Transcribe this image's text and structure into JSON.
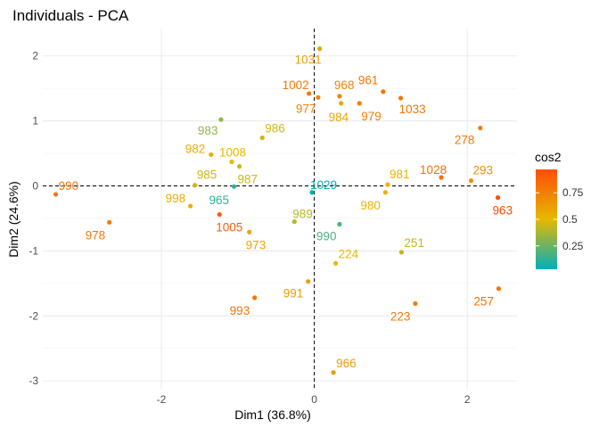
{
  "chart_data": {
    "type": "scatter",
    "title": "Individuals - PCA",
    "xlabel": "Dim1 (36.8%)",
    "ylabel": "Dim2 (24.6%)",
    "xlim": [
      -3.55,
      2.65
    ],
    "ylim": [
      -3.12,
      2.42
    ],
    "x_ticks": [
      -2,
      0,
      2
    ],
    "y_ticks": [
      -3,
      -2,
      -1,
      0,
      1,
      2
    ],
    "grid": true,
    "reference_lines": {
      "x": 0,
      "y": 0,
      "style": "dashed"
    },
    "color_by": "cos2",
    "legend": {
      "title": "cos2",
      "position": "right",
      "ticks": [
        0.25,
        0.5,
        0.75
      ],
      "range": [
        0.03,
        0.97
      ],
      "gradient": [
        "#00AFBB",
        "#E7B800",
        "#FC4E07"
      ]
    },
    "points": [
      {
        "label": "1031",
        "x": 0.07,
        "y": 2.11,
        "cos2": 0.6,
        "dx": -28,
        "dy": 17
      },
      {
        "label": "1002",
        "x": -0.07,
        "y": 1.42,
        "cos2": 0.78,
        "dx": -30,
        "dy": -5
      },
      {
        "label": "968",
        "x": 0.33,
        "y": 1.38,
        "cos2": 0.74,
        "dx": -6,
        "dy": -8
      },
      {
        "label": "961",
        "x": 0.9,
        "y": 1.45,
        "cos2": 0.8,
        "dx": -28,
        "dy": -8
      },
      {
        "label": "1033",
        "x": 1.13,
        "y": 1.35,
        "cos2": 0.8,
        "dx": -2,
        "dy": 17
      },
      {
        "label": "977",
        "x": 0.05,
        "y": 1.36,
        "cos2": 0.74,
        "dx": -25,
        "dy": 17
      },
      {
        "label": "984",
        "x": 0.35,
        "y": 1.27,
        "cos2": 0.58,
        "dx": -14,
        "dy": 20
      },
      {
        "label": "979",
        "x": 0.59,
        "y": 1.27,
        "cos2": 0.76,
        "dx": 2,
        "dy": 19
      },
      {
        "label": "278",
        "x": 2.17,
        "y": 0.89,
        "cos2": 0.78,
        "dx": -29,
        "dy": 18
      },
      {
        "label": "983",
        "x": -1.22,
        "y": 1.02,
        "cos2": 0.33,
        "dx": -26,
        "dy": 17
      },
      {
        "label": "986",
        "x": -0.68,
        "y": 0.74,
        "cos2": 0.45,
        "dx": 3,
        "dy": -6
      },
      {
        "label": "982",
        "x": -1.35,
        "y": 0.48,
        "cos2": 0.55,
        "dx": -29,
        "dy": -2
      },
      {
        "label": "1008",
        "x": -1.08,
        "y": 0.37,
        "cos2": 0.5,
        "dx": -14,
        "dy": -6
      },
      {
        "label": "987",
        "x": -0.98,
        "y": 0.3,
        "cos2": 0.45,
        "dx": -2,
        "dy": 19
      },
      {
        "label": "985",
        "x": -1.56,
        "y": 0.01,
        "cos2": 0.45,
        "dx": 2,
        "dy": -7
      },
      {
        "label": "965",
        "x": -1.05,
        "y": -0.01,
        "cos2": 0.12,
        "dx": -28,
        "dy": 20
      },
      {
        "label": "1029",
        "x": -0.03,
        "y": -0.1,
        "cos2": 0.03,
        "dx": -2,
        "dy": -4
      },
      {
        "label": "981",
        "x": 0.96,
        "y": 0.02,
        "cos2": 0.52,
        "dx": 2,
        "dy": -7
      },
      {
        "label": "980",
        "x": 0.93,
        "y": -0.1,
        "cos2": 0.52,
        "dx": -28,
        "dy": 19
      },
      {
        "label": "1028",
        "x": 1.66,
        "y": 0.13,
        "cos2": 0.82,
        "dx": -24,
        "dy": -4
      },
      {
        "label": "293",
        "x": 2.05,
        "y": 0.08,
        "cos2": 0.68,
        "dx": 2,
        "dy": -7
      },
      {
        "label": "963",
        "x": 2.4,
        "y": -0.18,
        "cos2": 0.97,
        "dx": -6,
        "dy": 19
      },
      {
        "label": "990",
        "x": -3.38,
        "y": -0.13,
        "cos2": 0.8,
        "dx": 3,
        "dy": -5
      },
      {
        "label": "978",
        "x": -2.68,
        "y": -0.56,
        "cos2": 0.78,
        "dx": -27,
        "dy": 19
      },
      {
        "label": "998",
        "x": -1.62,
        "y": -0.31,
        "cos2": 0.55,
        "dx": -28,
        "dy": -4
      },
      {
        "label": "1005",
        "x": -1.24,
        "y": -0.44,
        "cos2": 0.9,
        "dx": -4,
        "dy": 19
      },
      {
        "label": "973",
        "x": -0.85,
        "y": -0.71,
        "cos2": 0.58,
        "dx": -4,
        "dy": 19
      },
      {
        "label": "989",
        "x": -0.26,
        "y": -0.55,
        "cos2": 0.4,
        "dx": -2,
        "dy": -4
      },
      {
        "label": "990",
        "x": 0.33,
        "y": -0.59,
        "cos2": 0.18,
        "dx": -26,
        "dy": 18
      },
      {
        "label": "251",
        "x": 1.14,
        "y": -1.02,
        "cos2": 0.42,
        "dx": 3,
        "dy": -6
      },
      {
        "label": "224",
        "x": 0.28,
        "y": -1.19,
        "cos2": 0.5,
        "dx": 3,
        "dy": -6
      },
      {
        "label": "991",
        "x": -0.08,
        "y": -1.47,
        "cos2": 0.62,
        "dx": -28,
        "dy": 18
      },
      {
        "label": "993",
        "x": -0.78,
        "y": -1.72,
        "cos2": 0.8,
        "dx": -28,
        "dy": 19
      },
      {
        "label": "257",
        "x": 2.41,
        "y": -1.58,
        "cos2": 0.82,
        "dx": -28,
        "dy": 19
      },
      {
        "label": "223",
        "x": 1.32,
        "y": -1.81,
        "cos2": 0.78,
        "dx": -28,
        "dy": 19
      },
      {
        "label": "966",
        "x": 0.25,
        "y": -2.87,
        "cos2": 0.62,
        "dx": 3,
        "dy": -6
      }
    ]
  }
}
